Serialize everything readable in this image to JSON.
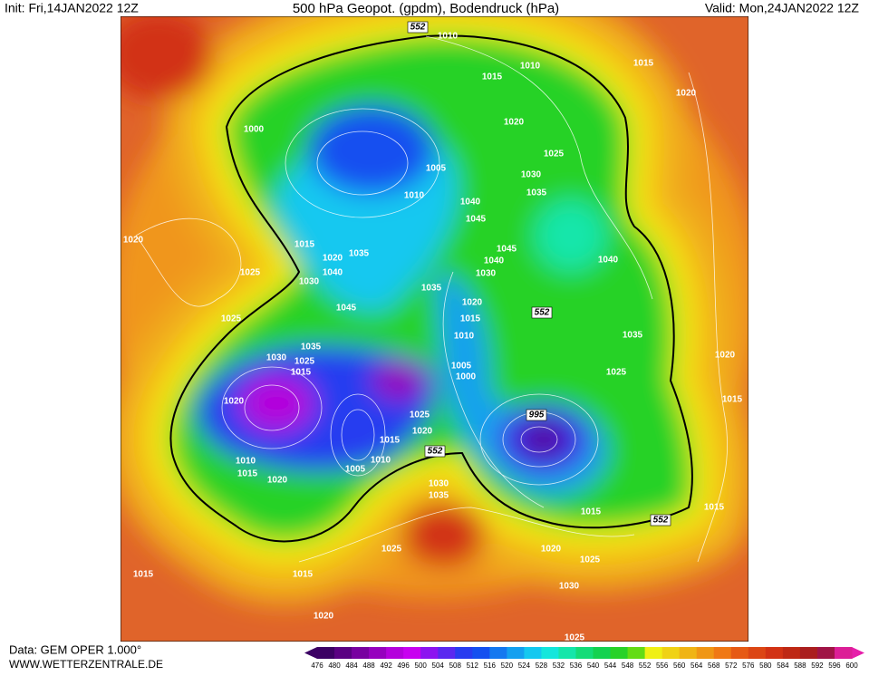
{
  "header": {
    "init": "Init: Fri,14JAN2022 12Z",
    "title": "500 hPa Geopot. (gpdm), Bodendruck (hPa)",
    "valid": "Valid: Mon,24JAN2022 12Z"
  },
  "footer": {
    "source": "Data: GEM OPER 1.000°",
    "website": "WWW.WETTERZENTRALE.DE"
  },
  "map": {
    "isobar_labels": [
      "552",
      "1010",
      "1010",
      "1015",
      "1020",
      "1015",
      "1000",
      "1020",
      "1025",
      "1005",
      "1030",
      "1010",
      "1035",
      "1040",
      "1045",
      "1020",
      "1015",
      "1035",
      "1020",
      "1045",
      "1040",
      "1040",
      "1040",
      "1025",
      "1030",
      "1030",
      "1035",
      "1020",
      "552",
      "1045",
      "1015",
      "1025",
      "1010",
      "1035",
      "1035",
      "1030",
      "1025",
      "1020",
      "1015",
      "1005",
      "1000",
      "1025",
      "1020",
      "1015",
      "995",
      "1025",
      "1020",
      "1015",
      "552",
      "1010",
      "1015",
      "1005",
      "1010",
      "1020",
      "1030",
      "1035",
      "1015",
      "1015",
      "552",
      "1025",
      "1020",
      "1025",
      "1015",
      "1015",
      "1030",
      "1020",
      "1025"
    ]
  },
  "legend": {
    "levels": [
      476,
      480,
      484,
      488,
      492,
      496,
      500,
      504,
      508,
      512,
      516,
      520,
      524,
      528,
      532,
      536,
      540,
      544,
      548,
      552,
      556,
      560,
      564,
      568,
      572,
      576,
      580,
      584,
      588,
      592,
      596,
      600
    ],
    "colors": [
      "#3c0064",
      "#5a0082",
      "#7800a0",
      "#9600be",
      "#b400dc",
      "#c800f0",
      "#8c14f0",
      "#5a28f0",
      "#283cf0",
      "#1450f0",
      "#1478f0",
      "#14a0f0",
      "#14c8f0",
      "#14e6dc",
      "#14e6aa",
      "#14dc78",
      "#14d250",
      "#28d228",
      "#64dc14",
      "#f0f014",
      "#f0d214",
      "#f0b414",
      "#f09614",
      "#f07814",
      "#e65a14",
      "#dc4614",
      "#d23214",
      "#be2814",
      "#aa1e1e",
      "#a01446",
      "#dc1e96"
    ],
    "arrow_colors": [
      "#3c0064",
      "#e61eaa"
    ]
  }
}
